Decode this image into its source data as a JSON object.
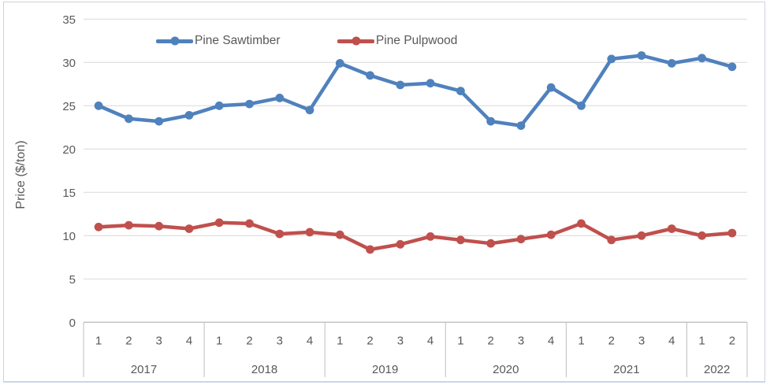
{
  "chart_data": {
    "type": "line",
    "title": "",
    "ylabel": "Price ($/ton)",
    "xlabel": "",
    "ylim": [
      0,
      35
    ],
    "yticks": [
      0,
      5,
      10,
      15,
      20,
      25,
      30,
      35
    ],
    "grid": true,
    "legend_position": "top-inside",
    "x_axis": {
      "years": [
        {
          "label": "2017",
          "quarters": [
            "1",
            "2",
            "3",
            "4"
          ]
        },
        {
          "label": "2018",
          "quarters": [
            "1",
            "2",
            "3",
            "4"
          ]
        },
        {
          "label": "2019",
          "quarters": [
            "1",
            "2",
            "3",
            "4"
          ]
        },
        {
          "label": "2020",
          "quarters": [
            "1",
            "2",
            "3",
            "4"
          ]
        },
        {
          "label": "2021",
          "quarters": [
            "1",
            "2",
            "3",
            "4"
          ]
        },
        {
          "label": "2022",
          "quarters": [
            "1",
            "2"
          ]
        }
      ]
    },
    "series": [
      {
        "name": "Pine Sawtimber",
        "color": "#4F81BD",
        "values": [
          25.0,
          23.5,
          23.2,
          23.9,
          25.0,
          25.2,
          25.9,
          24.5,
          29.9,
          28.5,
          27.4,
          27.6,
          26.7,
          23.2,
          22.7,
          27.1,
          25.0,
          30.4,
          30.8,
          29.9,
          30.5,
          29.5
        ]
      },
      {
        "name": "Pine Pulpwood",
        "color": "#C0504D",
        "values": [
          11.0,
          11.2,
          11.1,
          10.8,
          11.5,
          11.4,
          10.2,
          10.4,
          10.1,
          8.4,
          9.0,
          9.9,
          9.5,
          9.1,
          9.6,
          10.1,
          11.4,
          9.5,
          10.0,
          10.8,
          10.0,
          10.3
        ]
      }
    ],
    "colors": {
      "gridline": "#D9D9D9",
      "axis_line": "#BFBFBF",
      "text": "#595959",
      "frame_border": "#cdd3dd"
    }
  }
}
